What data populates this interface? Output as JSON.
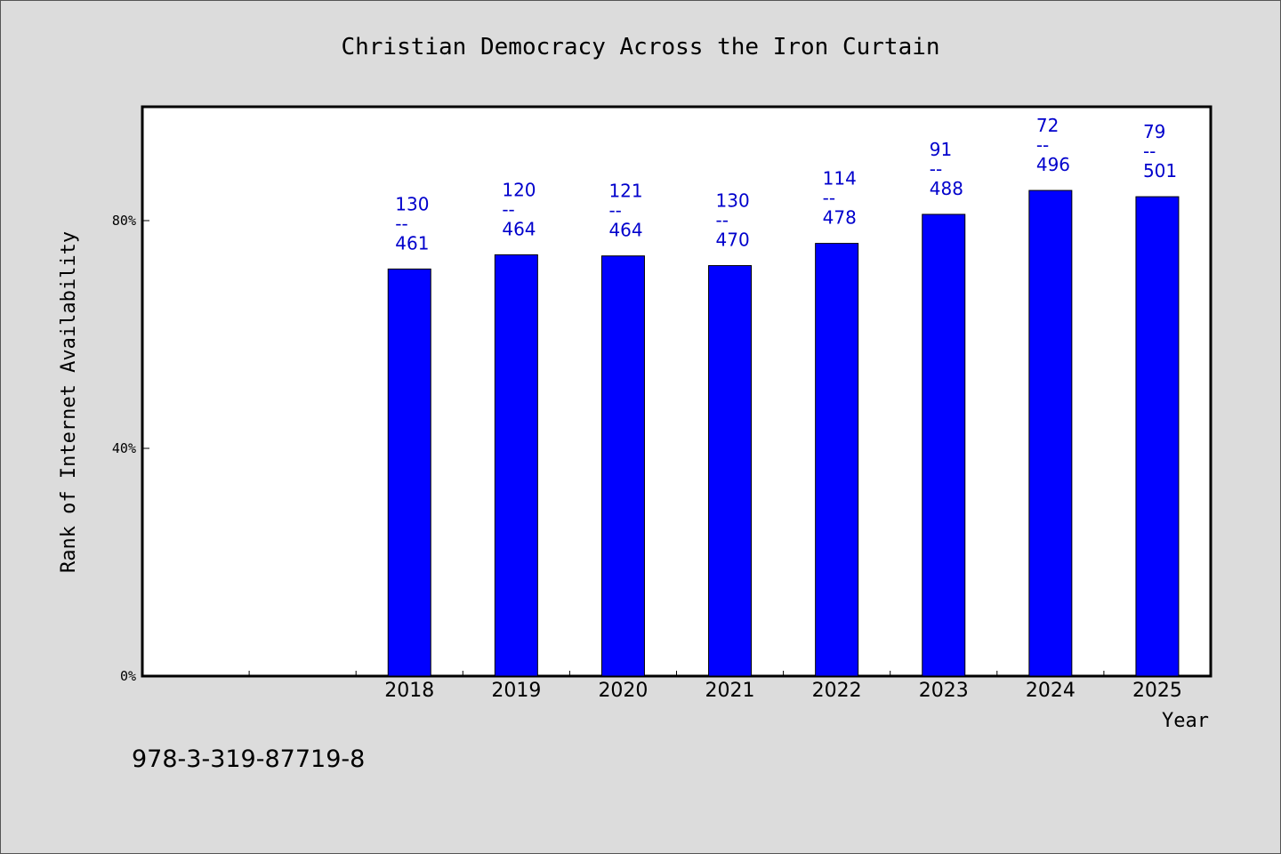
{
  "chart_data": {
    "type": "bar",
    "title": "Christian Democracy Across the Iron Curtain",
    "xlabel": "Year",
    "ylabel": "Rank of Internet Availability",
    "categories": [
      "",
      "",
      "2018",
      "2019",
      "2020",
      "2021",
      "2022",
      "2023",
      "2024",
      "2025"
    ],
    "values": [
      null,
      null,
      71.5,
      74.0,
      73.8,
      72.1,
      76.0,
      81.1,
      85.3,
      84.2
    ],
    "data_labels": [
      [
        "",
        "",
        ""
      ],
      [
        "",
        "",
        ""
      ],
      [
        "130",
        "--",
        "461"
      ],
      [
        "120",
        "--",
        "464"
      ],
      [
        "121",
        "--",
        "464"
      ],
      [
        "130",
        "--",
        "470"
      ],
      [
        "114",
        "--",
        "478"
      ],
      [
        "91",
        "--",
        "488"
      ],
      [
        "72",
        "--",
        "496"
      ],
      [
        "79",
        "--",
        "501"
      ]
    ],
    "ylim": [
      0,
      100
    ],
    "yticks": [
      0,
      40,
      80
    ],
    "ytick_labels": [
      "0%",
      "40%",
      "80%"
    ],
    "grid": false,
    "bar_color": "#0000ff",
    "label_color": "#0000cc"
  },
  "footnote": "978-3-319-87719-8"
}
